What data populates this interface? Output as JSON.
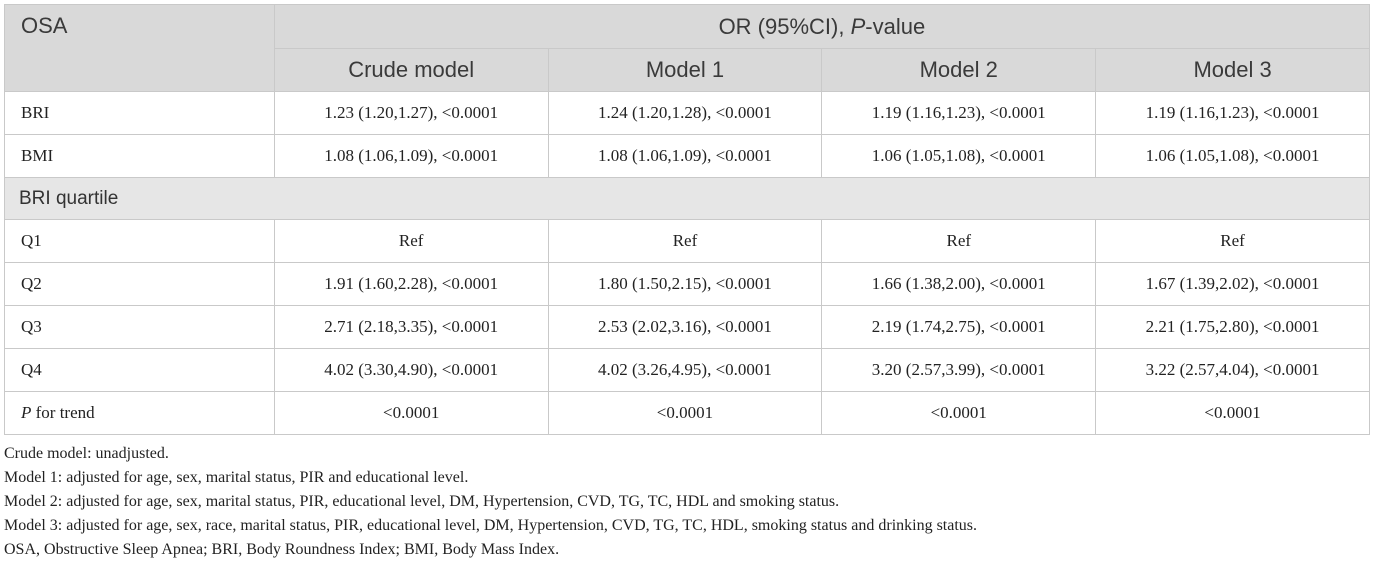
{
  "table": {
    "corner_label": "OSA",
    "group_header": {
      "text": "OR (95%CI), ",
      "italic": "P",
      "suffix": "-value"
    },
    "models": [
      "Crude model",
      "Model 1",
      "Model 2",
      "Model 3"
    ],
    "rows": [
      {
        "label": "BRI",
        "cells": [
          "1.23 (1.20,1.27), <0.0001",
          "1.24 (1.20,1.28), <0.0001",
          "1.19 (1.16,1.23), <0.0001",
          "1.19 (1.16,1.23), <0.0001"
        ]
      },
      {
        "label": "BMI",
        "cells": [
          "1.08 (1.06,1.09), <0.0001",
          "1.08 (1.06,1.09), <0.0001",
          "1.06 (1.05,1.08), <0.0001",
          "1.06 (1.05,1.08), <0.0001"
        ]
      }
    ],
    "section_label": "BRI quartile",
    "quartile_rows": [
      {
        "label": "Q1",
        "cells": [
          "Ref",
          "Ref",
          "Ref",
          "Ref"
        ]
      },
      {
        "label": "Q2",
        "cells": [
          "1.91 (1.60,2.28), <0.0001",
          "1.80 (1.50,2.15), <0.0001",
          "1.66 (1.38,2.00), <0.0001",
          "1.67 (1.39,2.02), <0.0001"
        ]
      },
      {
        "label": "Q3",
        "cells": [
          "2.71 (2.18,3.35), <0.0001",
          "2.53 (2.02,3.16), <0.0001",
          "2.19 (1.74,2.75), <0.0001",
          "2.21 (1.75,2.80), <0.0001"
        ]
      },
      {
        "label": "Q4",
        "cells": [
          "4.02 (3.30,4.90), <0.0001",
          "4.02 (3.26,4.95), <0.0001",
          "3.20 (2.57,3.99), <0.0001",
          "3.22 (2.57,4.04), <0.0001"
        ]
      }
    ],
    "trend_row": {
      "label_italic": "P",
      "label_rest": " for trend",
      "cells": [
        "<0.0001",
        "<0.0001",
        "<0.0001",
        "<0.0001"
      ]
    }
  },
  "footnotes": [
    "Crude model: unadjusted.",
    "Model 1: adjusted for age, sex, marital status, PIR and educational level.",
    "Model 2: adjusted for age, sex, marital status, PIR, educational level, DM, Hypertension, CVD, TG, TC, HDL and smoking status.",
    "Model 3: adjusted for age, sex, race, marital status, PIR, educational level, DM, Hypertension, CVD, TG, TC, HDL, smoking status and drinking status.",
    "OSA, Obstructive Sleep Apnea; BRI, Body Roundness Index; BMI, Body Mass Index."
  ]
}
